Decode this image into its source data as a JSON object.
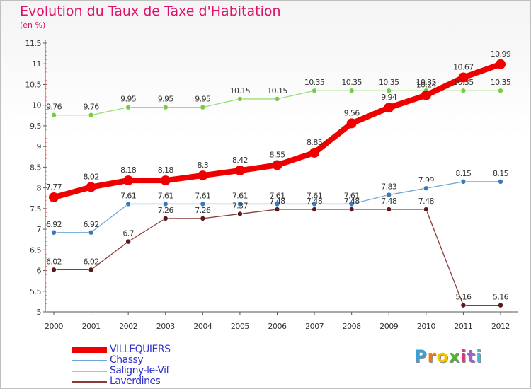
{
  "header": {
    "title": "Evolution du Taux de Taxe d'Habitation",
    "unit": "(en %)"
  },
  "brand": {
    "letters": [
      "P",
      "r",
      "o",
      "x",
      "i",
      "t",
      "i"
    ],
    "colors": [
      "#3aa0d8",
      "#f07818",
      "#f5c400",
      "#58b030",
      "#e83080",
      "#a060d0",
      "#40b8e0"
    ]
  },
  "chart_data": {
    "type": "line",
    "x": [
      "2000",
      "2001",
      "2002",
      "2003",
      "2004",
      "2005",
      "2006",
      "2007",
      "2008",
      "2009",
      "2010",
      "2011",
      "2012"
    ],
    "ylim": [
      5,
      11.5
    ],
    "yticks": [
      "5",
      "5.5",
      "6",
      "6.5",
      "7",
      "7.5",
      "8",
      "8.5",
      "9",
      "9.5",
      "10",
      "10.5",
      "11",
      "11.5"
    ],
    "grid": false,
    "legend_position": "bottom-left",
    "series": [
      {
        "name": "Saligny-le-Vif",
        "color": "#99dd77",
        "marker": "#77cc44",
        "width": 1.3,
        "r": 3.5,
        "values": [
          9.76,
          9.76,
          9.95,
          9.95,
          9.95,
          10.15,
          10.15,
          10.35,
          10.35,
          10.35,
          10.35,
          10.35,
          10.35
        ],
        "labels": [
          "9.76",
          "9.76",
          "9.95",
          "9.95",
          "9.95",
          "10.15",
          "10.15",
          "10.35",
          "10.35",
          "10.35",
          "10.35",
          "10.35",
          "10.35"
        ]
      },
      {
        "name": "Laverdines",
        "color": "#8b3a3a",
        "marker": "#5a1a1a",
        "width": 1.3,
        "r": 3.5,
        "values": [
          6.02,
          6.02,
          6.7,
          7.26,
          7.26,
          7.37,
          7.48,
          7.48,
          7.48,
          7.48,
          7.48,
          5.16,
          5.16
        ],
        "labels": [
          "6.02",
          "6.02",
          "6.7",
          "7.26",
          "7.26",
          "7.37",
          "7.48",
          "7.48",
          "7.48",
          "7.48",
          "7.48",
          "5.16",
          "5.16"
        ]
      },
      {
        "name": "Chassy",
        "color": "#6fa8d8",
        "marker": "#3a78b8",
        "width": 1.3,
        "r": 3.5,
        "values": [
          6.92,
          6.92,
          7.61,
          7.61,
          7.61,
          7.61,
          7.61,
          7.61,
          7.61,
          7.83,
          7.99,
          8.15,
          8.15
        ],
        "labels": [
          "6.92",
          "6.92",
          "7.61",
          "7.61",
          "7.61",
          "7.61",
          "7.61",
          "7.61",
          "7.61",
          "7.83",
          "7.99",
          "8.15",
          "8.15"
        ]
      },
      {
        "name": "VILLEQUIERS",
        "color": "#ee0000",
        "marker": "#ee0000",
        "width": 8,
        "r": 7,
        "values": [
          7.77,
          8.02,
          8.18,
          8.18,
          8.3,
          8.42,
          8.55,
          8.85,
          9.56,
          9.94,
          10.24,
          10.67,
          10.99
        ],
        "labels": [
          "7.77",
          "8.02",
          "8.18",
          "8.18",
          "8.3",
          "8.42",
          "8.55",
          "8.85",
          "9.56",
          "9.94",
          "10.24",
          "10.67",
          "10.99"
        ]
      }
    ],
    "legend": [
      {
        "name": "VILLEQUIERS",
        "color": "#ee0000",
        "text_color": "#3333cc",
        "thick": true
      },
      {
        "name": "Chassy",
        "color": "#6fa8d8",
        "text_color": "#3333cc",
        "thick": false
      },
      {
        "name": "Saligny-le-Vif",
        "color": "#99dd77",
        "text_color": "#3333cc",
        "thick": false
      },
      {
        "name": "Laverdines",
        "color": "#8b3a3a",
        "text_color": "#3333cc",
        "thick": false
      }
    ]
  }
}
